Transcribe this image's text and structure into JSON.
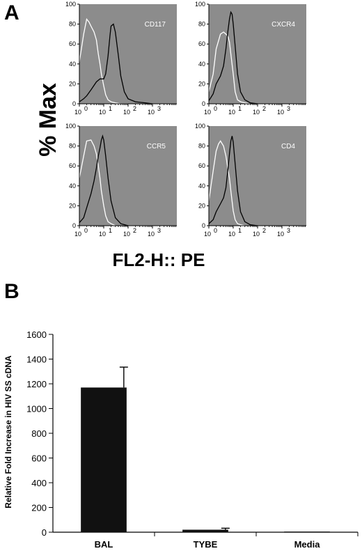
{
  "panel_a": {
    "letter": "A",
    "ylabel": "% Max",
    "xlabel": "FL2-H:: PE",
    "y_ticks": [
      "0",
      "20",
      "40",
      "60",
      "80",
      "100"
    ],
    "x_ticks": [
      {
        "base": "10",
        "exp": "0"
      },
      {
        "base": "10",
        "exp": "1"
      },
      {
        "base": "10",
        "exp": "2"
      },
      {
        "base": "10",
        "exp": "3"
      }
    ],
    "colors": {
      "plot_bg": "#8c8c8c",
      "control_line": "#ffffff",
      "stain_line": "#000000"
    }
  },
  "panel_b": {
    "letter": "B",
    "ylabel": "Relative Fold Increase in HIV SS cDNA",
    "bar_color": "#111111"
  },
  "chart_data": [
    {
      "type": "line",
      "marker": "CD117",
      "x_scale": "log",
      "xlim": [
        1,
        10000
      ],
      "ylim": [
        0,
        100
      ],
      "series": [
        {
          "x": [
            1,
            1.5,
            2,
            2.5,
            3,
            4,
            5,
            6,
            7,
            8,
            10,
            12,
            15,
            20,
            30,
            50,
            100
          ],
          "y": [
            42,
            70,
            85,
            82,
            78,
            72,
            64,
            50,
            40,
            30,
            18,
            9,
            4,
            2,
            1,
            0,
            0
          ]
        },
        {
          "x": [
            1,
            1.5,
            2,
            3,
            5,
            7,
            10,
            12,
            15,
            18,
            20,
            25,
            30,
            40,
            50,
            70,
            100,
            200,
            500,
            1000
          ],
          "y": [
            2,
            5,
            8,
            14,
            22,
            25,
            25,
            30,
            48,
            68,
            78,
            80,
            72,
            48,
            28,
            12,
            5,
            2,
            1,
            0
          ]
        }
      ]
    },
    {
      "type": "line",
      "marker": "CXCR4",
      "x_scale": "log",
      "xlim": [
        1,
        10000
      ],
      "ylim": [
        0,
        100
      ],
      "series": [
        {
          "x": [
            1,
            1.5,
            2,
            3,
            4,
            5,
            6,
            7,
            8,
            10,
            12,
            15,
            20,
            30,
            50
          ],
          "y": [
            12,
            30,
            55,
            70,
            72,
            70,
            68,
            62,
            50,
            30,
            12,
            4,
            2,
            1,
            0
          ]
        },
        {
          "x": [
            1,
            1.5,
            2,
            3,
            4,
            5,
            6,
            7,
            8,
            9,
            10,
            12,
            15,
            20,
            30,
            50,
            100
          ],
          "y": [
            3,
            10,
            20,
            28,
            38,
            55,
            72,
            85,
            92,
            90,
            80,
            58,
            30,
            12,
            4,
            1,
            0
          ]
        }
      ]
    },
    {
      "type": "line",
      "marker": "CCR5",
      "x_scale": "log",
      "xlim": [
        1,
        10000
      ],
      "ylim": [
        0,
        100
      ],
      "series": [
        {
          "x": [
            1,
            1.5,
            2,
            3,
            4,
            5,
            6,
            7,
            8,
            10,
            12,
            15,
            20,
            30
          ],
          "y": [
            48,
            70,
            85,
            86,
            80,
            72,
            60,
            48,
            35,
            20,
            10,
            4,
            2,
            0
          ]
        },
        {
          "x": [
            1,
            1.5,
            2,
            3,
            4,
            5,
            6,
            7,
            8,
            9,
            10,
            12,
            15,
            20,
            30,
            50,
            100
          ],
          "y": [
            3,
            8,
            18,
            32,
            45,
            58,
            70,
            78,
            86,
            90,
            86,
            70,
            48,
            25,
            8,
            2,
            0
          ]
        }
      ]
    },
    {
      "type": "line",
      "marker": "CD4",
      "x_scale": "log",
      "xlim": [
        1,
        10000
      ],
      "ylim": [
        0,
        100
      ],
      "series": [
        {
          "x": [
            1,
            1.5,
            2,
            2.5,
            3,
            4,
            5,
            6,
            7,
            8,
            10,
            12,
            15,
            20,
            30
          ],
          "y": [
            25,
            55,
            75,
            82,
            85,
            80,
            70,
            58,
            48,
            35,
            15,
            6,
            2,
            1,
            0
          ]
        },
        {
          "x": [
            1,
            1.5,
            2,
            3,
            4,
            5,
            6,
            7,
            8,
            9,
            10,
            12,
            15,
            20,
            30,
            50,
            100
          ],
          "y": [
            2,
            6,
            14,
            22,
            28,
            38,
            55,
            72,
            85,
            90,
            84,
            62,
            35,
            14,
            4,
            1,
            0
          ]
        }
      ]
    },
    {
      "type": "bar",
      "categories": [
        "BAL",
        "TYBE",
        "Media"
      ],
      "values": [
        1170,
        20,
        5
      ],
      "errors": [
        165,
        12,
        0
      ],
      "ylim": [
        0,
        1600
      ],
      "yticks": [
        "0",
        "200",
        "400",
        "600",
        "800",
        "1000",
        "1200",
        "1400",
        "1600"
      ]
    }
  ]
}
